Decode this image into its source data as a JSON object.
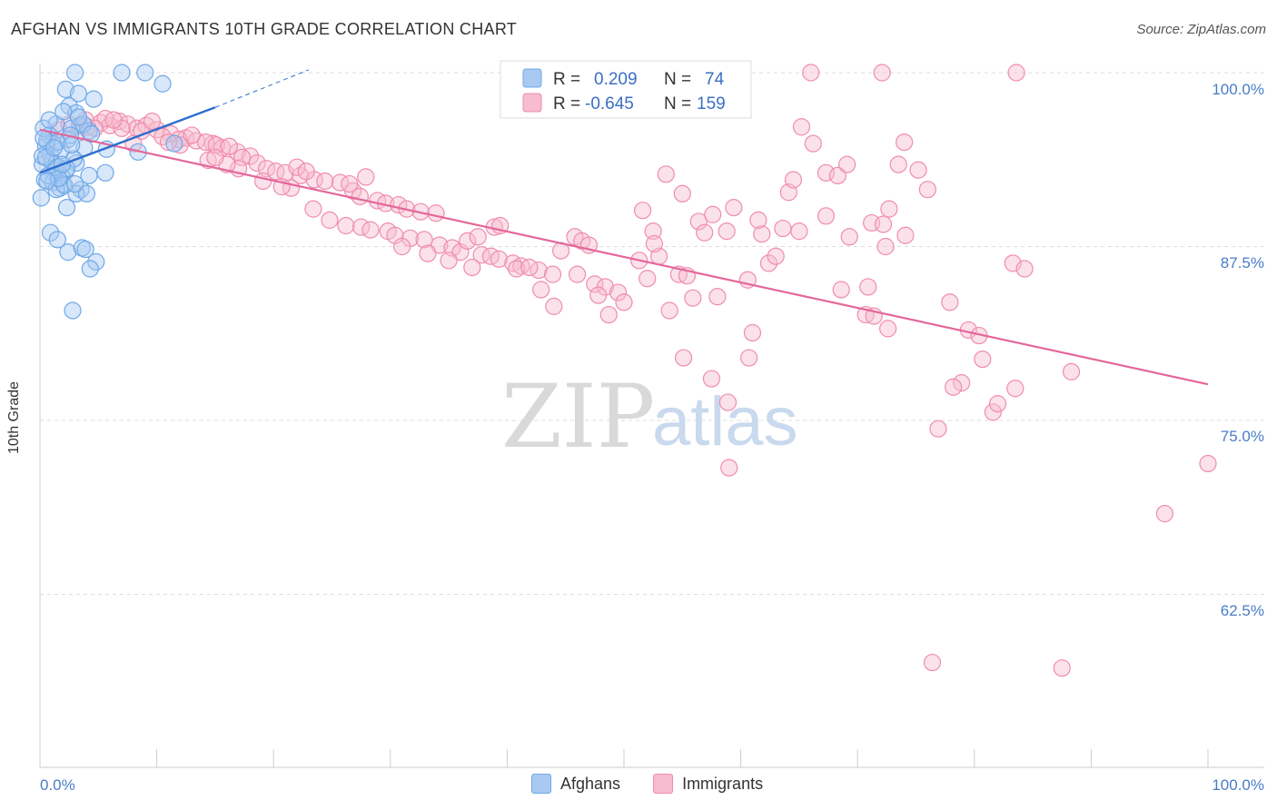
{
  "title": "AFGHAN VS IMMIGRANTS 10TH GRADE CORRELATION CHART",
  "source": "Source: ZipAtlas.com",
  "watermark": {
    "zip": "ZIP",
    "atlas": "atlas"
  },
  "colors": {
    "blue": "#6fa8e8",
    "blue_fill": "#a9c9f2",
    "blue_line": "#2f6fce",
    "pink": "#f08cad",
    "pink_fill": "#f7bccf",
    "pink_line": "#e4679a",
    "tick_text": "#4a7cc9",
    "grid": "#dddddd"
  },
  "legend": {
    "rows": [
      {
        "r_label": "R =",
        "r_value": "0.209",
        "n_label": "N =",
        "n_value": "74"
      },
      {
        "r_label": "R =",
        "r_value": "-0.645",
        "n_label": "N =",
        "n_value": "159"
      }
    ]
  },
  "bottom_legend": {
    "afghans": "Afghans",
    "immigrants": "Immigrants"
  },
  "chart_data": {
    "type": "scatter",
    "title": "AFGHAN VS IMMIGRANTS 10TH GRADE CORRELATION CHART",
    "xlabel": "",
    "ylabel": "10th Grade",
    "xlim": [
      0,
      100
    ],
    "ylim": [
      50,
      100
    ],
    "x_tick_labels": [
      "0.0%",
      "100.0%"
    ],
    "y_tick_labels": [
      "100.0%",
      "87.5%",
      "75.0%",
      "62.5%"
    ],
    "y_ticks": [
      100,
      87.5,
      75,
      62.5
    ],
    "grid": true,
    "legend_position": "top-center",
    "series": [
      {
        "name": "Afghans",
        "stats": {
          "R": 0.209,
          "N": 74
        },
        "trend": {
          "x0": 0,
          "y0": 92.8,
          "x1": 15,
          "y1": 97.5,
          "dash_to_x": 23,
          "dash_to_y": 100.2
        },
        "points": [
          [
            3,
            100
          ],
          [
            7,
            100
          ],
          [
            9,
            100
          ],
          [
            10.5,
            99.2
          ],
          [
            2.2,
            98.8
          ],
          [
            3.3,
            98.5
          ],
          [
            4.6,
            98.1
          ],
          [
            2.5,
            97.6
          ],
          [
            3.1,
            97.1
          ],
          [
            1.4,
            96.3
          ],
          [
            3.4,
            96.2
          ],
          [
            2.7,
            96.0
          ],
          [
            4.2,
            95.8
          ],
          [
            0.8,
            95.5
          ],
          [
            2.4,
            95.2
          ],
          [
            1.1,
            94.9
          ],
          [
            0.5,
            94.7
          ],
          [
            3.8,
            94.6
          ],
          [
            5.7,
            94.5
          ],
          [
            8.4,
            94.3
          ],
          [
            0.9,
            94.1
          ],
          [
            3.1,
            93.5
          ],
          [
            0.2,
            93.4
          ],
          [
            1.6,
            93.2
          ],
          [
            2.2,
            92.9
          ],
          [
            1.2,
            92.8
          ],
          [
            5.6,
            92.8
          ],
          [
            4.2,
            92.6
          ],
          [
            1.9,
            92.5
          ],
          [
            0.4,
            92.3
          ],
          [
            1.1,
            92.1
          ],
          [
            2.0,
            92.0
          ],
          [
            1.7,
            91.7
          ],
          [
            3.5,
            91.6
          ],
          [
            1.4,
            91.6
          ],
          [
            3.1,
            91.3
          ],
          [
            4.0,
            91.3
          ],
          [
            0.1,
            91.0
          ],
          [
            2.3,
            90.3
          ],
          [
            0.9,
            88.5
          ],
          [
            1.5,
            88.0
          ],
          [
            2.4,
            87.1
          ],
          [
            3.6,
            87.4
          ],
          [
            3.9,
            87.3
          ],
          [
            4.8,
            86.4
          ],
          [
            4.3,
            85.9
          ],
          [
            2.8,
            82.9
          ],
          [
            1.3,
            93.0
          ],
          [
            0.6,
            95.1
          ],
          [
            2.9,
            93.8
          ],
          [
            1.8,
            94.4
          ],
          [
            0.3,
            96.0
          ],
          [
            1.0,
            93.6
          ],
          [
            2.6,
            95.5
          ],
          [
            1.5,
            95.0
          ],
          [
            3.7,
            96.3
          ],
          [
            0.7,
            92.6
          ],
          [
            2.1,
            91.9
          ],
          [
            1.4,
            93.2
          ],
          [
            0.2,
            94.0
          ],
          [
            2.3,
            93.1
          ],
          [
            3.0,
            92.0
          ],
          [
            1.6,
            92.4
          ],
          [
            0.5,
            93.9
          ],
          [
            4.4,
            95.6
          ],
          [
            11.5,
            94.9
          ],
          [
            0.3,
            95.3
          ],
          [
            1.9,
            93.4
          ],
          [
            2.7,
            94.8
          ],
          [
            0.8,
            96.6
          ],
          [
            1.2,
            94.6
          ],
          [
            3.3,
            96.8
          ],
          [
            2.0,
            97.2
          ],
          [
            0.6,
            92.2
          ]
        ]
      },
      {
        "name": "Immigrants",
        "stats": {
          "R": -0.645,
          "N": 159
        },
        "trend": {
          "x0": 0,
          "y0": 95.9,
          "x1": 100,
          "y1": 77.6
        },
        "points": [
          [
            66,
            100
          ],
          [
            72.1,
            100
          ],
          [
            83.6,
            100
          ],
          [
            1.6,
            95.9
          ],
          [
            2.5,
            96.3
          ],
          [
            3.3,
            95.8
          ],
          [
            4.1,
            96.1
          ],
          [
            5.2,
            96.4
          ],
          [
            6.0,
            96.2
          ],
          [
            6.8,
            96.5
          ],
          [
            7.5,
            96.3
          ],
          [
            8.3,
            96.0
          ],
          [
            9.1,
            96.2
          ],
          [
            10.0,
            95.9
          ],
          [
            11.2,
            95.6
          ],
          [
            12.5,
            95.3
          ],
          [
            13.4,
            95.1
          ],
          [
            14.8,
            94.9
          ],
          [
            15.6,
            94.6
          ],
          [
            16.9,
            94.3
          ],
          [
            18.0,
            94.0
          ],
          [
            3.9,
            96.6
          ],
          [
            5.6,
            96.7
          ],
          [
            7.0,
            96.0
          ],
          [
            8.7,
            95.8
          ],
          [
            10.5,
            95.4
          ],
          [
            11.9,
            95.2
          ],
          [
            13.0,
            95.5
          ],
          [
            14.2,
            95.0
          ],
          [
            15.1,
            94.8
          ],
          [
            16.2,
            94.7
          ],
          [
            17.3,
            93.9
          ],
          [
            18.6,
            93.5
          ],
          [
            19.4,
            93.1
          ],
          [
            20.2,
            92.9
          ],
          [
            21.0,
            92.8
          ],
          [
            22.3,
            92.6
          ],
          [
            23.5,
            92.3
          ],
          [
            24.4,
            92.2
          ],
          [
            25.7,
            92.1
          ],
          [
            26.8,
            91.5
          ],
          [
            27.4,
            91.1
          ],
          [
            28.9,
            90.8
          ],
          [
            29.6,
            90.6
          ],
          [
            30.7,
            90.5
          ],
          [
            31.4,
            90.2
          ],
          [
            32.6,
            90.0
          ],
          [
            33.9,
            89.9
          ],
          [
            23.4,
            90.2
          ],
          [
            24.8,
            89.4
          ],
          [
            26.2,
            89.0
          ],
          [
            27.5,
            88.9
          ],
          [
            28.3,
            88.7
          ],
          [
            29.8,
            88.6
          ],
          [
            30.4,
            88.3
          ],
          [
            31.7,
            88.1
          ],
          [
            32.9,
            88.0
          ],
          [
            34.2,
            87.6
          ],
          [
            35.3,
            87.4
          ],
          [
            36.0,
            87.1
          ],
          [
            37.8,
            86.9
          ],
          [
            38.6,
            86.8
          ],
          [
            39.3,
            86.6
          ],
          [
            40.5,
            86.3
          ],
          [
            41.2,
            86.1
          ],
          [
            42.7,
            85.8
          ],
          [
            43.9,
            85.5
          ],
          [
            36.6,
            87.9
          ],
          [
            37.5,
            88.2
          ],
          [
            38.9,
            88.9
          ],
          [
            39.4,
            89.0
          ],
          [
            22.0,
            93.2
          ],
          [
            26.5,
            92.0
          ],
          [
            27.9,
            92.5
          ],
          [
            21.5,
            91.7
          ],
          [
            19.1,
            92.2
          ],
          [
            22.8,
            92.9
          ],
          [
            14.4,
            93.7
          ],
          [
            17.0,
            93.1
          ],
          [
            16.0,
            93.4
          ],
          [
            15.0,
            93.9
          ],
          [
            12.0,
            94.8
          ],
          [
            8.0,
            94.9
          ],
          [
            11.0,
            95.0
          ],
          [
            6.3,
            96.6
          ],
          [
            9.6,
            96.5
          ],
          [
            4.7,
            96.0
          ],
          [
            20.7,
            91.8
          ],
          [
            31.0,
            87.5
          ],
          [
            33.2,
            87.0
          ],
          [
            35.0,
            86.5
          ],
          [
            37.0,
            86.0
          ],
          [
            40.8,
            85.9
          ],
          [
            42.9,
            84.4
          ],
          [
            44.0,
            83.2
          ],
          [
            41.9,
            86.0
          ],
          [
            44.6,
            87.2
          ],
          [
            45.8,
            88.2
          ],
          [
            46.4,
            87.9
          ],
          [
            47.0,
            87.6
          ],
          [
            46.0,
            85.5
          ],
          [
            47.5,
            84.8
          ],
          [
            48.4,
            84.6
          ],
          [
            47.8,
            84.0
          ],
          [
            48.7,
            82.6
          ],
          [
            49.5,
            84.2
          ],
          [
            50.0,
            83.5
          ],
          [
            51.3,
            86.5
          ],
          [
            53.0,
            86.8
          ],
          [
            54.7,
            85.5
          ],
          [
            55.4,
            85.4
          ],
          [
            52.0,
            85.2
          ],
          [
            53.9,
            82.9
          ],
          [
            51.6,
            90.1
          ],
          [
            52.5,
            88.6
          ],
          [
            52.6,
            87.7
          ],
          [
            53.6,
            92.7
          ],
          [
            55.0,
            91.3
          ],
          [
            56.4,
            89.3
          ],
          [
            56.9,
            88.5
          ],
          [
            57.6,
            89.8
          ],
          [
            58.8,
            88.6
          ],
          [
            59.4,
            90.3
          ],
          [
            60.6,
            85.1
          ],
          [
            60.7,
            79.5
          ],
          [
            61.0,
            81.3
          ],
          [
            61.8,
            88.4
          ],
          [
            62.4,
            86.3
          ],
          [
            63.0,
            86.8
          ],
          [
            64.1,
            91.4
          ],
          [
            63.6,
            88.8
          ],
          [
            64.5,
            92.3
          ],
          [
            65.0,
            88.6
          ],
          [
            58.0,
            83.9
          ],
          [
            55.9,
            83.8
          ],
          [
            55.1,
            79.5
          ],
          [
            61.5,
            89.4
          ],
          [
            65.2,
            96.1
          ],
          [
            66.2,
            94.9
          ],
          [
            67.3,
            92.8
          ],
          [
            68.3,
            92.6
          ],
          [
            69.1,
            93.4
          ],
          [
            71.2,
            89.2
          ],
          [
            72.2,
            89.1
          ],
          [
            74.1,
            88.3
          ],
          [
            74.0,
            95.0
          ],
          [
            72.7,
            90.2
          ],
          [
            69.3,
            88.2
          ],
          [
            70.9,
            84.6
          ],
          [
            70.7,
            82.6
          ],
          [
            71.4,
            82.5
          ],
          [
            72.6,
            81.6
          ],
          [
            73.5,
            93.4
          ],
          [
            75.2,
            93.0
          ],
          [
            76.0,
            91.6
          ],
          [
            72.4,
            87.5
          ],
          [
            77.9,
            83.5
          ],
          [
            79.5,
            81.5
          ],
          [
            80.4,
            81.1
          ],
          [
            80.7,
            79.4
          ],
          [
            78.9,
            77.7
          ],
          [
            81.6,
            75.6
          ],
          [
            82.0,
            76.2
          ],
          [
            83.5,
            77.3
          ],
          [
            83.3,
            86.3
          ],
          [
            88.3,
            78.5
          ],
          [
            96.3,
            68.3
          ],
          [
            100.0,
            71.9
          ],
          [
            84.3,
            85.9
          ],
          [
            67.3,
            89.7
          ],
          [
            68.6,
            84.4
          ],
          [
            76.9,
            74.4
          ],
          [
            78.2,
            77.4
          ],
          [
            57.5,
            78.0
          ],
          [
            58.9,
            76.3
          ],
          [
            59.0,
            71.6
          ],
          [
            76.4,
            57.6
          ],
          [
            87.5,
            57.2
          ]
        ]
      }
    ]
  }
}
